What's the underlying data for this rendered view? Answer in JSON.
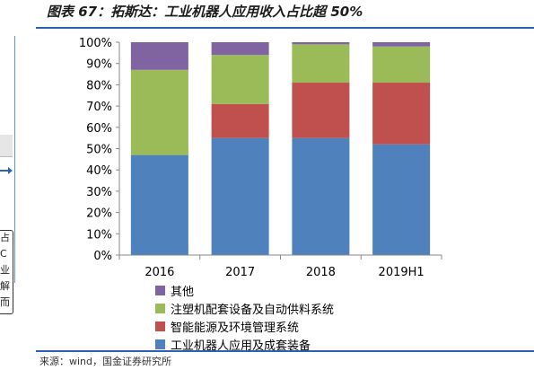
{
  "header": {
    "title": "图表 67：拓斯达：工业机器人应用收入占比超 50%"
  },
  "footer": {
    "source": "来源：wind，国金证券研究所"
  },
  "left_fragment": {
    "chars": [
      "占",
      "C",
      "业",
      "解",
      "而"
    ]
  },
  "chart_data": {
    "type": "bar",
    "stacked": true,
    "categories": [
      "2016",
      "2017",
      "2018",
      "2019H1"
    ],
    "ylim": [
      0,
      100
    ],
    "yticks": [
      "0%",
      "10%",
      "20%",
      "30%",
      "40%",
      "50%",
      "60%",
      "70%",
      "80%",
      "90%",
      "100%"
    ],
    "series": [
      {
        "name": "工业机器人应用及成套装备",
        "color": "#4f81bd",
        "values": [
          47,
          55,
          55,
          52
        ]
      },
      {
        "name": "智能能源及环境管理系统",
        "color": "#c0504d",
        "values": [
          0,
          16,
          26,
          29
        ]
      },
      {
        "name": "注塑机配套设备及自动供料系统",
        "color": "#9bbb59",
        "values": [
          40,
          23,
          18,
          17
        ]
      },
      {
        "name": "其他",
        "color": "#8064a2",
        "values": [
          13,
          6,
          1,
          2
        ]
      }
    ],
    "legend_order": [
      3,
      2,
      1,
      0
    ],
    "legend_position": "bottom"
  }
}
